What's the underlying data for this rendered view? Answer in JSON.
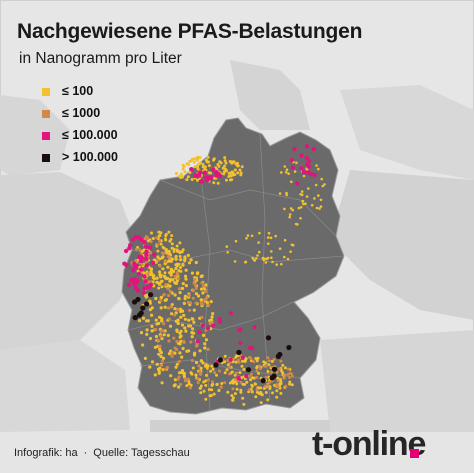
{
  "title": "Nachgewiesene PFAS-Belastungen",
  "subtitle": "in Nanogramm pro Liter",
  "legend": [
    {
      "label": "≤ 100",
      "color": "#f2c12e"
    },
    {
      "label": "≤ 1000",
      "color": "#d1894a"
    },
    {
      "label": "≤ 100.000",
      "color": "#e2137f"
    },
    {
      "label": "> 100.000",
      "color": "#1a0d0d"
    }
  ],
  "credit": {
    "infografik": "Infografik: ha",
    "quelle": "Quelle: Tagesschau"
  },
  "brand": "t-online",
  "colors": {
    "background": "#e6e6e6",
    "germany": "#6a6a6a",
    "neighbors": "#cfcfcf",
    "borders": "#9a9a9a",
    "brand_accent": "#e20074"
  }
}
